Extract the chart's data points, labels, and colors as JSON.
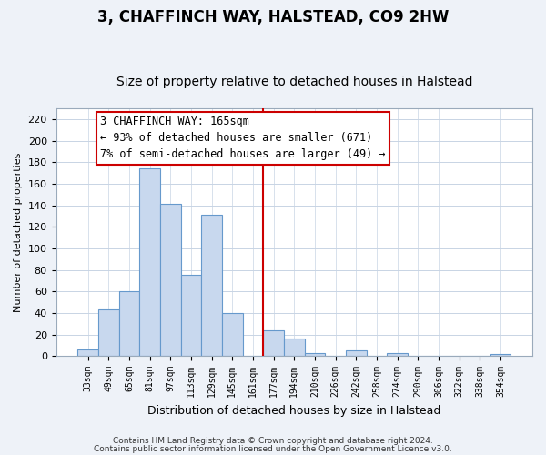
{
  "title": "3, CHAFFINCH WAY, HALSTEAD, CO9 2HW",
  "subtitle": "Size of property relative to detached houses in Halstead",
  "xlabel": "Distribution of detached houses by size in Halstead",
  "ylabel": "Number of detached properties",
  "bar_labels": [
    "33sqm",
    "49sqm",
    "65sqm",
    "81sqm",
    "97sqm",
    "113sqm",
    "129sqm",
    "145sqm",
    "161sqm",
    "177sqm",
    "194sqm",
    "210sqm",
    "226sqm",
    "242sqm",
    "258sqm",
    "274sqm",
    "290sqm",
    "306sqm",
    "322sqm",
    "338sqm",
    "354sqm"
  ],
  "bar_values": [
    6,
    43,
    60,
    174,
    141,
    75,
    131,
    40,
    0,
    24,
    16,
    3,
    0,
    5,
    0,
    3,
    0,
    0,
    0,
    0,
    2
  ],
  "bar_color": "#c8d8ee",
  "bar_edge_color": "#6699cc",
  "vline_x_index": 8,
  "vline_color": "#cc0000",
  "annotation_line1": "3 CHAFFINCH WAY: 165sqm",
  "annotation_line2": "← 93% of detached houses are smaller (671)",
  "annotation_line3": "7% of semi-detached houses are larger (49) →",
  "ylim": [
    0,
    230
  ],
  "yticks": [
    0,
    20,
    40,
    60,
    80,
    100,
    120,
    140,
    160,
    180,
    200,
    220
  ],
  "footnote1": "Contains HM Land Registry data © Crown copyright and database right 2024.",
  "footnote2": "Contains public sector information licensed under the Open Government Licence v3.0.",
  "bg_color": "#eef2f8",
  "plot_bg_color": "#ffffff",
  "title_fontsize": 12,
  "subtitle_fontsize": 10,
  "annotation_fontsize": 8.5,
  "footnote_fontsize": 6.5,
  "ylabel_fontsize": 8,
  "xlabel_fontsize": 9
}
